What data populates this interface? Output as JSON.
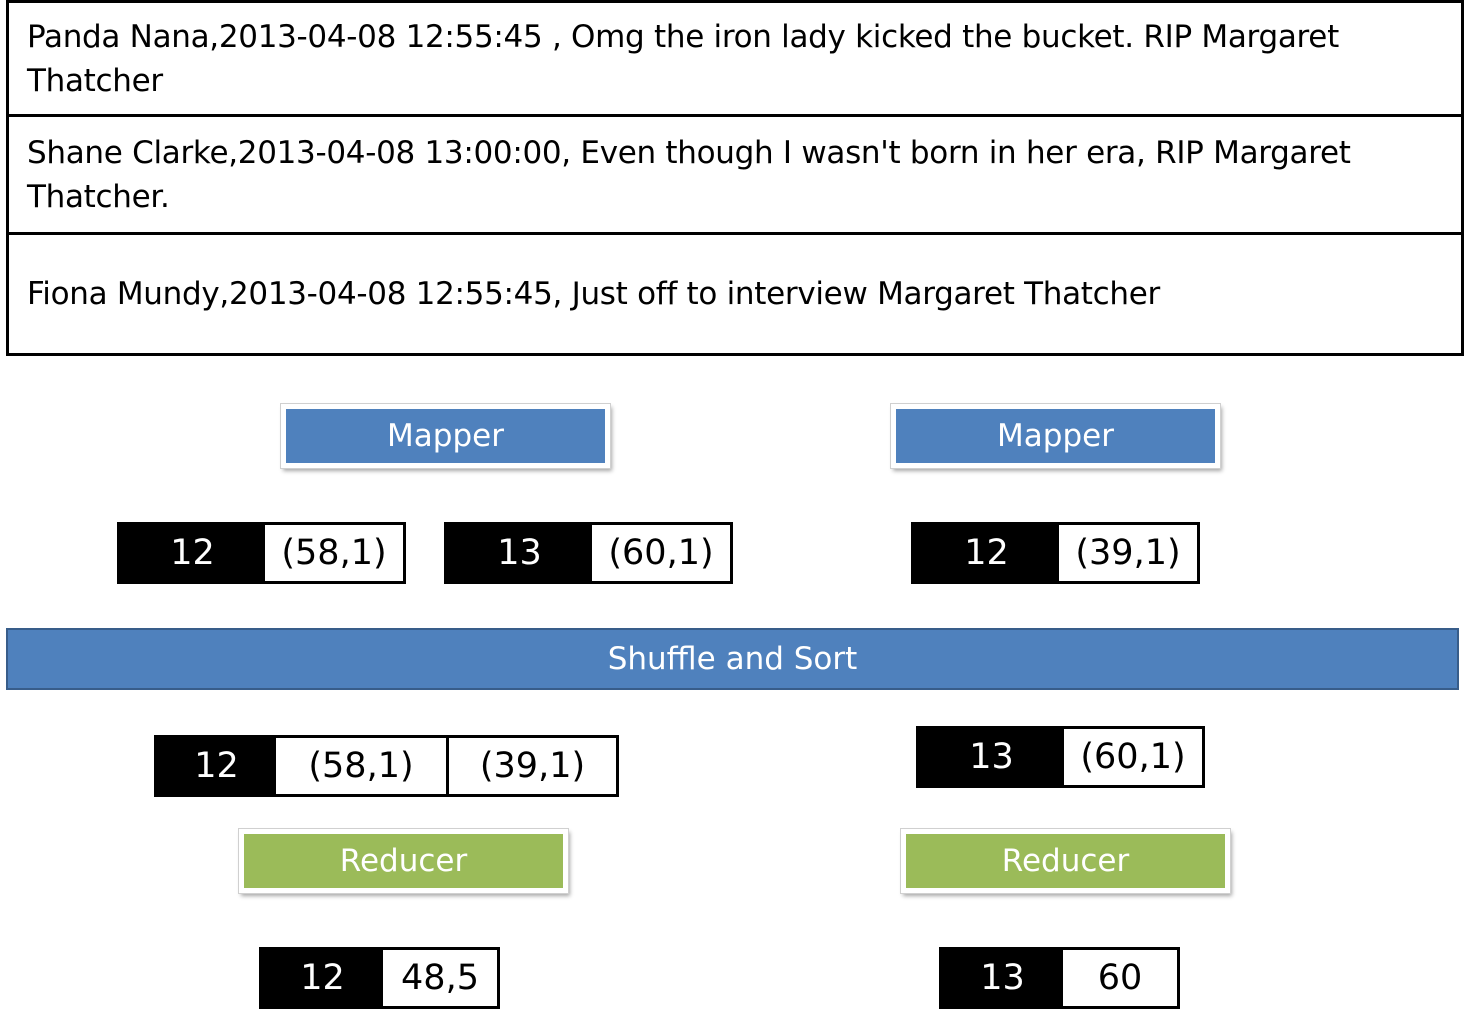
{
  "records": [
    {
      "text": "Panda Nana,2013-04-08 12:55:45 , Omg the iron lady kicked the bucket. RIP Margaret Thatcher"
    },
    {
      "text": "Shane Clarke,2013-04-08 13:00:00, Even though I wasn't born in her era, RIP Margaret Thatcher."
    },
    {
      "text": "Fiona Mundy,2013-04-08 12:55:45, Just off to interview Margaret Thatcher"
    }
  ],
  "mappers": [
    {
      "label": "Mapper"
    },
    {
      "label": "Mapper"
    }
  ],
  "mapper_outputs": [
    {
      "key": "12",
      "values": [
        "(58,1)"
      ]
    },
    {
      "key": "13",
      "values": [
        "(60,1)"
      ]
    },
    {
      "key": "12",
      "values": [
        "(39,1)"
      ]
    }
  ],
  "shuffle": {
    "label": "Shuffle and Sort"
  },
  "grouped": [
    {
      "key": "12",
      "values": [
        "(58,1)",
        "(39,1)"
      ]
    },
    {
      "key": "13",
      "values": [
        "(60,1)"
      ]
    }
  ],
  "reducers": [
    {
      "label": "Reducer"
    },
    {
      "label": "Reducer"
    }
  ],
  "results": [
    {
      "key": "12",
      "values": [
        "48,5"
      ]
    },
    {
      "key": "13",
      "values": [
        "60"
      ]
    }
  ],
  "colors": {
    "mapper": "#4f81bd",
    "shuffle": "#4f81bd",
    "reducer": "#9bbb59"
  }
}
